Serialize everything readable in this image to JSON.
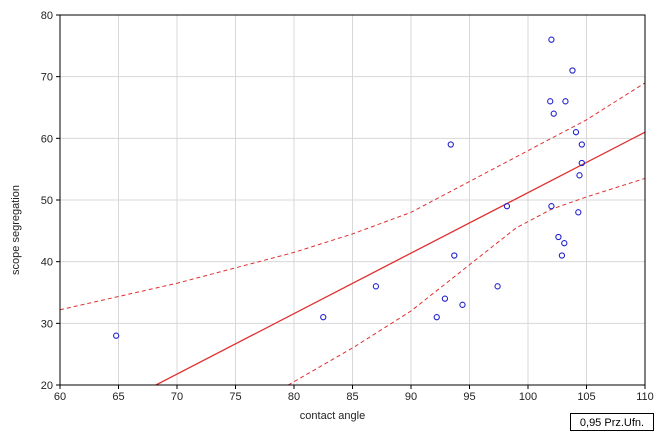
{
  "chart_data": {
    "type": "scatter",
    "title": "",
    "xlabel": "contact angle",
    "ylabel": "scope segregation",
    "xlim": [
      60,
      110
    ],
    "ylim": [
      20,
      80
    ],
    "x_ticks": [
      "60",
      "65",
      "70",
      "75",
      "80",
      "85",
      "90",
      "95",
      "100",
      "105",
      "110"
    ],
    "y_ticks": [
      "20",
      "30",
      "40",
      "50",
      "60",
      "70",
      "80"
    ],
    "grid": true,
    "legend_placement": "bottom-right",
    "legend_text": "0,95 Prz.Ufn.",
    "points": [
      {
        "x": 64.8,
        "y": 28
      },
      {
        "x": 82.5,
        "y": 31
      },
      {
        "x": 87.0,
        "y": 36
      },
      {
        "x": 92.2,
        "y": 31
      },
      {
        "x": 92.9,
        "y": 34
      },
      {
        "x": 93.4,
        "y": 59
      },
      {
        "x": 93.7,
        "y": 41
      },
      {
        "x": 94.4,
        "y": 33
      },
      {
        "x": 97.4,
        "y": 36
      },
      {
        "x": 98.2,
        "y": 49
      },
      {
        "x": 102.0,
        "y": 76
      },
      {
        "x": 101.9,
        "y": 66
      },
      {
        "x": 102.2,
        "y": 64
      },
      {
        "x": 103.2,
        "y": 66
      },
      {
        "x": 103.8,
        "y": 71
      },
      {
        "x": 104.1,
        "y": 61
      },
      {
        "x": 104.6,
        "y": 59
      },
      {
        "x": 104.6,
        "y": 56
      },
      {
        "x": 104.4,
        "y": 54
      },
      {
        "x": 102.0,
        "y": 49
      },
      {
        "x": 104.3,
        "y": 48
      },
      {
        "x": 102.6,
        "y": 44
      },
      {
        "x": 103.1,
        "y": 43
      },
      {
        "x": 102.9,
        "y": 41
      }
    ],
    "regression_line": {
      "x": [
        68.2,
        110
      ],
      "y": [
        20,
        61
      ]
    },
    "confidence_upper": {
      "x": [
        60,
        70,
        80,
        85,
        90,
        93,
        96,
        99,
        102,
        105,
        110
      ],
      "y": [
        32.2,
        36.5,
        41.5,
        44.5,
        48.0,
        51.0,
        54.0,
        57.0,
        60.0,
        63.0,
        69.0
      ]
    },
    "confidence_lower": {
      "x": [
        79.5,
        85,
        90,
        93,
        96,
        99,
        102,
        105,
        110
      ],
      "y": [
        20,
        26.0,
        32.0,
        36.5,
        41.0,
        45.5,
        48.5,
        50.5,
        53.5
      ]
    },
    "colors": {
      "points": "#2222cc",
      "fit": "#e03030",
      "grid": "#d8d8d8",
      "axis": "#000000"
    }
  }
}
